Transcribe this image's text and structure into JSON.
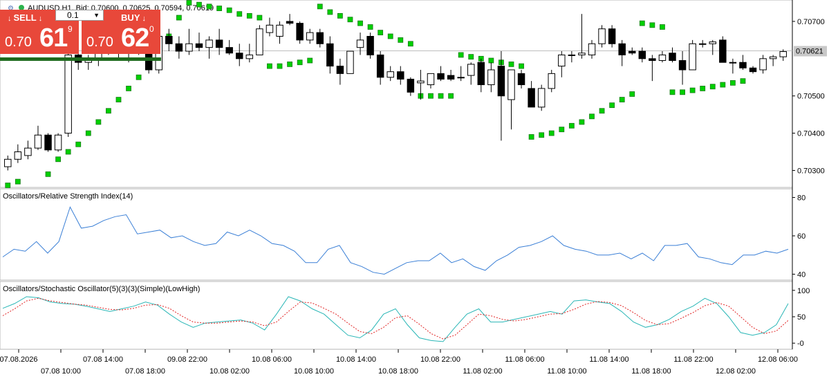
{
  "header": {
    "symbol_line": "AUDUSD,H1, Bid: 0.70600, 0.70625, 0.70594, 0.70619"
  },
  "trade_panel": {
    "sell_label": "SELL",
    "buy_label": "BUY",
    "lot_value": "0.1",
    "sell_price_small": "0.70",
    "sell_price_big": "61",
    "sell_price_sup": "9",
    "buy_price_small": "0.70",
    "buy_price_big": "62",
    "buy_price_sup": "0",
    "arrow_glyph": "↓",
    "colors": {
      "button": "#e8483a",
      "bar": "#1e6b1e"
    }
  },
  "price_axis": {
    "ticks": [
      "0.70700",
      "0.70500",
      "0.70400",
      "0.70300"
    ],
    "current_price": "0.70621"
  },
  "rsi_panel": {
    "title": "Oscillators/Relative Strength Index(14)",
    "ticks": [
      "80",
      "60",
      "40"
    ]
  },
  "stoch_panel": {
    "title": "Oscillators/Stochastic Oscillator(5)(3)(3)(Simple)(LowHigh)",
    "ticks": [
      "100",
      "50",
      "-0"
    ]
  },
  "time_axis": {
    "labels_top": [
      "07.08.2026",
      "07.08 14:00",
      "09.08 22:00",
      "10.08 06:00",
      "10.08 14:00",
      "10.08 22:00",
      "11.08 06:00",
      "11.08 14:00",
      "11.08 22:00",
      "12.08 06:00"
    ],
    "labels_bottom": [
      "07.08 10:00",
      "07.08 18:00",
      "10.08 02:00",
      "10.08 10:00",
      "10.08 18:00",
      "11.08 02:00",
      "11.08 10:00",
      "11.08 18:00",
      "12.08 02:00"
    ]
  },
  "chart_data": [
    {
      "type": "candlestick",
      "title": "AUDUSD,H1",
      "ylim": [
        0.7026,
        0.7075
      ],
      "candles": [
        {
          "o": 0.7031,
          "h": 0.7034,
          "l": 0.703,
          "c": 0.7033
        },
        {
          "o": 0.7033,
          "h": 0.7037,
          "l": 0.7032,
          "c": 0.7035
        },
        {
          "o": 0.7034,
          "h": 0.7038,
          "l": 0.7033,
          "c": 0.7036
        },
        {
          "o": 0.7036,
          "h": 0.7042,
          "l": 0.70355,
          "c": 0.70395
        },
        {
          "o": 0.70395,
          "h": 0.704,
          "l": 0.7035,
          "c": 0.70355
        },
        {
          "o": 0.70355,
          "h": 0.704,
          "l": 0.7035,
          "c": 0.70395
        },
        {
          "o": 0.704,
          "h": 0.7062,
          "l": 0.7039,
          "c": 0.7061
        },
        {
          "o": 0.7061,
          "h": 0.7064,
          "l": 0.7057,
          "c": 0.7059
        },
        {
          "o": 0.7059,
          "h": 0.7061,
          "l": 0.7057,
          "c": 0.70595
        },
        {
          "o": 0.70595,
          "h": 0.7064,
          "l": 0.7058,
          "c": 0.7062
        },
        {
          "o": 0.7062,
          "h": 0.7065,
          "l": 0.7061,
          "c": 0.7063
        },
        {
          "o": 0.7063,
          "h": 0.7065,
          "l": 0.706,
          "c": 0.7062
        },
        {
          "o": 0.7062,
          "h": 0.7064,
          "l": 0.7059,
          "c": 0.7063
        },
        {
          "o": 0.7063,
          "h": 0.7065,
          "l": 0.7061,
          "c": 0.70625
        },
        {
          "o": 0.70625,
          "h": 0.7065,
          "l": 0.7056,
          "c": 0.7057
        },
        {
          "o": 0.7057,
          "h": 0.7067,
          "l": 0.7056,
          "c": 0.7066
        },
        {
          "o": 0.7066,
          "h": 0.7068,
          "l": 0.7062,
          "c": 0.7064
        },
        {
          "o": 0.7064,
          "h": 0.7066,
          "l": 0.706,
          "c": 0.7062
        },
        {
          "o": 0.7062,
          "h": 0.7068,
          "l": 0.7061,
          "c": 0.7064
        },
        {
          "o": 0.7064,
          "h": 0.7067,
          "l": 0.7062,
          "c": 0.7063
        },
        {
          "o": 0.7063,
          "h": 0.7066,
          "l": 0.706,
          "c": 0.7065
        },
        {
          "o": 0.7065,
          "h": 0.7068,
          "l": 0.7061,
          "c": 0.7063
        },
        {
          "o": 0.7063,
          "h": 0.7065,
          "l": 0.7061,
          "c": 0.70615
        },
        {
          "o": 0.70615,
          "h": 0.7064,
          "l": 0.7058,
          "c": 0.706
        },
        {
          "o": 0.706,
          "h": 0.7064,
          "l": 0.7059,
          "c": 0.7061
        },
        {
          "o": 0.7061,
          "h": 0.7069,
          "l": 0.7061,
          "c": 0.7068
        },
        {
          "o": 0.7067,
          "h": 0.7071,
          "l": 0.7066,
          "c": 0.7069
        },
        {
          "o": 0.7066,
          "h": 0.707,
          "l": 0.7064,
          "c": 0.7069
        },
        {
          "o": 0.707,
          "h": 0.7072,
          "l": 0.7069,
          "c": 0.70695
        },
        {
          "o": 0.70695,
          "h": 0.707,
          "l": 0.7064,
          "c": 0.7065
        },
        {
          "o": 0.7065,
          "h": 0.7068,
          "l": 0.7064,
          "c": 0.7067
        },
        {
          "o": 0.7067,
          "h": 0.7068,
          "l": 0.7063,
          "c": 0.7064
        },
        {
          "o": 0.7064,
          "h": 0.7066,
          "l": 0.7056,
          "c": 0.7058
        },
        {
          "o": 0.7058,
          "h": 0.706,
          "l": 0.7053,
          "c": 0.7056
        },
        {
          "o": 0.7056,
          "h": 0.7062,
          "l": 0.7056,
          "c": 0.7062
        },
        {
          "o": 0.7063,
          "h": 0.7067,
          "l": 0.7061,
          "c": 0.7065
        },
        {
          "o": 0.7066,
          "h": 0.7067,
          "l": 0.706,
          "c": 0.7061
        },
        {
          "o": 0.7061,
          "h": 0.7062,
          "l": 0.7053,
          "c": 0.7055
        },
        {
          "o": 0.7055,
          "h": 0.7058,
          "l": 0.7054,
          "c": 0.70565
        },
        {
          "o": 0.70565,
          "h": 0.7058,
          "l": 0.7053,
          "c": 0.70545
        },
        {
          "o": 0.70545,
          "h": 0.7055,
          "l": 0.705,
          "c": 0.7051
        },
        {
          "o": 0.70535,
          "h": 0.7057,
          "l": 0.7049,
          "c": 0.7054
        },
        {
          "o": 0.7053,
          "h": 0.7056,
          "l": 0.7052,
          "c": 0.7056
        },
        {
          "o": 0.7056,
          "h": 0.7058,
          "l": 0.7054,
          "c": 0.70545
        },
        {
          "o": 0.70555,
          "h": 0.7057,
          "l": 0.7054,
          "c": 0.70545
        },
        {
          "o": 0.7055,
          "h": 0.7058,
          "l": 0.7054,
          "c": 0.7055
        },
        {
          "o": 0.70555,
          "h": 0.7059,
          "l": 0.7053,
          "c": 0.70585
        },
        {
          "o": 0.7059,
          "h": 0.706,
          "l": 0.7051,
          "c": 0.7053
        },
        {
          "o": 0.7053,
          "h": 0.7059,
          "l": 0.7051,
          "c": 0.7057
        },
        {
          "o": 0.7058,
          "h": 0.7062,
          "l": 0.7038,
          "c": 0.705
        },
        {
          "o": 0.7049,
          "h": 0.7057,
          "l": 0.7041,
          "c": 0.7057
        },
        {
          "o": 0.7056,
          "h": 0.7057,
          "l": 0.7052,
          "c": 0.7053
        },
        {
          "o": 0.7052,
          "h": 0.7054,
          "l": 0.7047,
          "c": 0.7047
        },
        {
          "o": 0.7047,
          "h": 0.7053,
          "l": 0.7046,
          "c": 0.7052
        },
        {
          "o": 0.7052,
          "h": 0.7057,
          "l": 0.7051,
          "c": 0.7056
        },
        {
          "o": 0.7058,
          "h": 0.7062,
          "l": 0.7055,
          "c": 0.7061
        },
        {
          "o": 0.7061,
          "h": 0.7062,
          "l": 0.7059,
          "c": 0.7061
        },
        {
          "o": 0.7061,
          "h": 0.7072,
          "l": 0.706,
          "c": 0.70615
        },
        {
          "o": 0.7061,
          "h": 0.7065,
          "l": 0.706,
          "c": 0.7064
        },
        {
          "o": 0.7064,
          "h": 0.7069,
          "l": 0.7063,
          "c": 0.7068
        },
        {
          "o": 0.7068,
          "h": 0.7069,
          "l": 0.7063,
          "c": 0.7064
        },
        {
          "o": 0.7064,
          "h": 0.7065,
          "l": 0.7058,
          "c": 0.7061
        },
        {
          "o": 0.7062,
          "h": 0.7063,
          "l": 0.7061,
          "c": 0.70615
        },
        {
          "o": 0.7062,
          "h": 0.7063,
          "l": 0.7059,
          "c": 0.706
        },
        {
          "o": 0.706,
          "h": 0.7061,
          "l": 0.7054,
          "c": 0.70595
        },
        {
          "o": 0.70595,
          "h": 0.7062,
          "l": 0.7059,
          "c": 0.7061
        },
        {
          "o": 0.70615,
          "h": 0.7063,
          "l": 0.7059,
          "c": 0.70595
        },
        {
          "o": 0.70595,
          "h": 0.7062,
          "l": 0.7053,
          "c": 0.7057
        },
        {
          "o": 0.7057,
          "h": 0.7065,
          "l": 0.7057,
          "c": 0.7064
        },
        {
          "o": 0.7064,
          "h": 0.7065,
          "l": 0.7063,
          "c": 0.7064
        },
        {
          "o": 0.7064,
          "h": 0.7065,
          "l": 0.7061,
          "c": 0.70645
        },
        {
          "o": 0.7065,
          "h": 0.7066,
          "l": 0.7059,
          "c": 0.7059
        },
        {
          "o": 0.7059,
          "h": 0.706,
          "l": 0.7056,
          "c": 0.7059
        },
        {
          "o": 0.7059,
          "h": 0.7061,
          "l": 0.7057,
          "c": 0.70575
        },
        {
          "o": 0.70575,
          "h": 0.7058,
          "l": 0.7056,
          "c": 0.70565
        },
        {
          "o": 0.7057,
          "h": 0.7061,
          "l": 0.7056,
          "c": 0.706
        },
        {
          "o": 0.706,
          "h": 0.7061,
          "l": 0.7058,
          "c": 0.70605
        },
        {
          "o": 0.70605,
          "h": 0.70625,
          "l": 0.70594,
          "c": 0.70619
        }
      ],
      "parabolic_sar": [
        0.7026,
        0.7027,
        null,
        null,
        0.7029,
        0.7033,
        0.7035,
        0.7037,
        0.704,
        0.7043,
        0.7046,
        0.7049,
        0.7052,
        0.7055,
        0.7058,
        0.7063,
        0.7066,
        0.7071,
        0.7075,
        0.70745,
        0.7074,
        0.70735,
        0.7073,
        0.7072,
        0.70715,
        0.7071,
        0.7058,
        0.7058,
        0.70585,
        0.7059,
        0.70595,
        0.7074,
        0.70725,
        0.70715,
        0.70705,
        0.70695,
        0.70685,
        0.7067,
        0.7066,
        0.7065,
        0.7064,
        0.705,
        0.705,
        0.705,
        0.705,
        0.7061,
        0.70605,
        0.706,
        0.70595,
        0.7059,
        0.70585,
        0.7058,
        0.7039,
        0.70395,
        0.704,
        0.7041,
        0.7042,
        0.7043,
        0.70445,
        0.7046,
        0.70475,
        0.7049,
        0.70505,
        0.70695,
        0.7069,
        0.70685,
        0.7051,
        0.7051,
        0.70515,
        0.7052,
        0.70525,
        0.7053,
        0.70535,
        0.7054
      ],
      "current_price": 0.70621
    },
    {
      "type": "line",
      "title": "Oscillators/Relative Strength Index(14)",
      "ylim": [
        38,
        82
      ],
      "series": [
        {
          "values": [
            49,
            53,
            52,
            57,
            51,
            57,
            75,
            64,
            65,
            68,
            70,
            71,
            61,
            62,
            63,
            59,
            60,
            57,
            55,
            56,
            62,
            60,
            63,
            60,
            56,
            55,
            52,
            46,
            46,
            53,
            55,
            46,
            44,
            41,
            40,
            43,
            46,
            47,
            47,
            51,
            46,
            48,
            44,
            42,
            47,
            50,
            54,
            55,
            57,
            60,
            55,
            53,
            52,
            50,
            50,
            51,
            48,
            51,
            47,
            55,
            55,
            56,
            49,
            48,
            46,
            45,
            50,
            50,
            52,
            51,
            53
          ]
        }
      ]
    },
    {
      "type": "line",
      "title": "Oscillators/Stochastic Oscillator(5)(3)(3)(Simple)(LowHigh)",
      "ylim": [
        -5,
        105
      ],
      "series": [
        {
          "values": [
            66,
            75,
            88,
            86,
            78,
            75,
            74,
            70,
            65,
            60,
            65,
            70,
            78,
            72,
            55,
            40,
            30,
            38,
            40,
            42,
            44,
            38,
            25,
            55,
            88,
            80,
            65,
            55,
            35,
            15,
            10,
            25,
            55,
            65,
            35,
            10,
            5,
            3,
            30,
            55,
            65,
            40,
            40,
            45,
            50,
            55,
            60,
            55,
            80,
            82,
            78,
            75,
            60,
            40,
            30,
            35,
            45,
            60,
            70,
            85,
            75,
            50,
            20,
            15,
            20,
            35,
            75
          ]
        },
        {
          "values": [
            52,
            65,
            80,
            85,
            80,
            77,
            74,
            72,
            68,
            64,
            63,
            66,
            72,
            73,
            66,
            52,
            40,
            38,
            38,
            40,
            42,
            40,
            33,
            40,
            60,
            78,
            76,
            66,
            55,
            38,
            22,
            18,
            30,
            48,
            52,
            36,
            18,
            8,
            15,
            35,
            55,
            52,
            45,
            42,
            45,
            50,
            55,
            56,
            64,
            74,
            79,
            77,
            71,
            58,
            43,
            35,
            37,
            47,
            58,
            71,
            77,
            70,
            50,
            30,
            18,
            23,
            43
          ]
        }
      ]
    }
  ]
}
